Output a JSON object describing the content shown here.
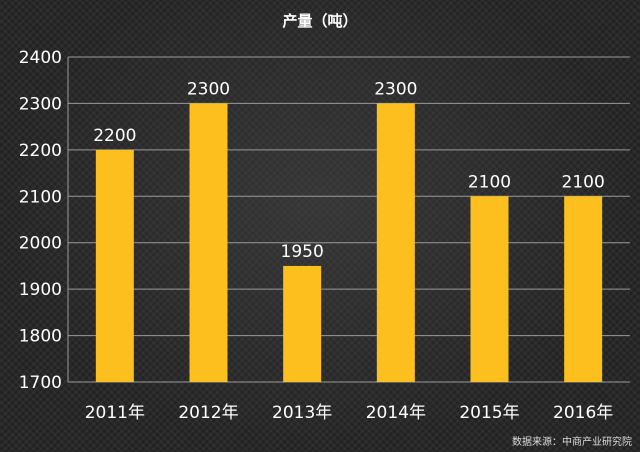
{
  "chart_data": {
    "type": "bar",
    "title": "产量（吨）",
    "categories": [
      "2011年",
      "2012年",
      "2013年",
      "2014年",
      "2015年",
      "2016年"
    ],
    "values": [
      2200,
      2300,
      1950,
      2300,
      2100,
      2100
    ],
    "ylim": [
      1700,
      2400
    ],
    "yticks": [
      1700,
      1800,
      1900,
      2000,
      2100,
      2200,
      2300,
      2400
    ],
    "grid": true,
    "bar_color": "#FDBF1E",
    "grid_color": "#9a9a9a",
    "source": "数据来源：中商产业研究院"
  }
}
